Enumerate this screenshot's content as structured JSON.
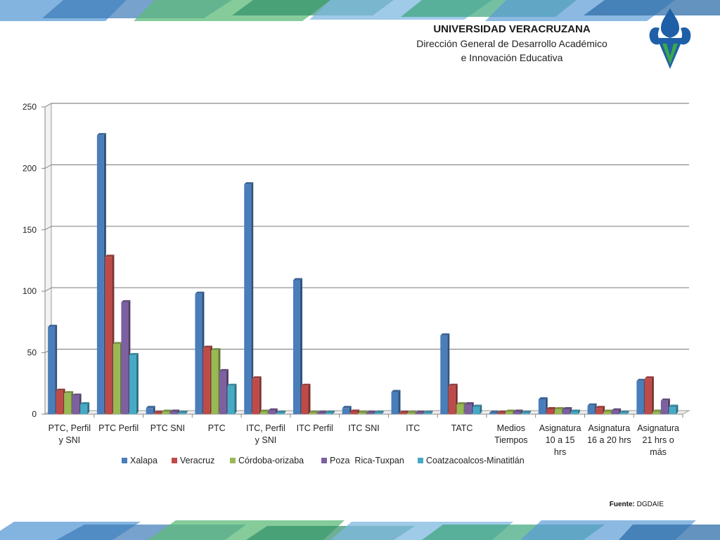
{
  "header": {
    "university": "UNIVERSIDAD VERACRUZANA",
    "department_line1": "Dirección General de Desarrollo Académico",
    "department_line2": "e Innovación Educativa"
  },
  "footer": {
    "source_label": "Fuente:",
    "source_value": "DGDAIE"
  },
  "colors": {
    "Xalapa": "#4a7ebb",
    "Veracruz": "#be4b48",
    "Córdoba-orizaba": "#98b954",
    "Poza  Rica-Tuxpan": "#7d60a0",
    "Coatzacoalcos-Minatitlán": "#46aac5"
  },
  "chart_data": {
    "type": "bar",
    "ylim": [
      0,
      250
    ],
    "yticks": [
      0,
      50,
      100,
      150,
      200,
      250
    ],
    "grid": true,
    "legend_position": "bottom",
    "categories": [
      [
        "PTC, Perfil",
        "y SNI"
      ],
      [
        "PTC Perfil"
      ],
      [
        "PTC SNI"
      ],
      [
        "PTC"
      ],
      [
        "ITC, Perfil",
        "y SNI"
      ],
      [
        "ITC Perfil"
      ],
      [
        "ITC SNI"
      ],
      [
        "ITC"
      ],
      [
        "TATC"
      ],
      [
        "Medios",
        "Tiempos"
      ],
      [
        "Asignatura",
        "10  a 15",
        "hrs"
      ],
      [
        "Asignatura",
        "16 a 20 hrs"
      ],
      [
        "Asignatura",
        "21 hrs o",
        "más"
      ]
    ],
    "series": [
      {
        "name": "Xalapa",
        "values": [
          71,
          227,
          5,
          98,
          187,
          109,
          5,
          18,
          64,
          1,
          12,
          7,
          27
        ]
      },
      {
        "name": "Veracruz",
        "values": [
          19,
          128,
          1,
          54,
          29,
          23,
          2,
          1,
          23,
          1,
          4,
          5,
          29
        ]
      },
      {
        "name": "Córdoba-orizaba",
        "values": [
          17,
          57,
          2,
          52,
          2,
          1,
          1,
          1,
          8,
          2,
          4,
          2,
          2
        ]
      },
      {
        "name": "Poza  Rica-Tuxpan",
        "values": [
          15,
          91,
          2,
          35,
          3,
          1,
          1,
          1,
          8,
          2,
          4,
          3,
          11
        ]
      },
      {
        "name": "Coatzacoalcos-Minatitlán",
        "values": [
          8,
          48,
          1,
          23,
          1,
          1,
          1,
          1,
          6,
          1,
          2,
          1,
          6
        ]
      }
    ]
  }
}
